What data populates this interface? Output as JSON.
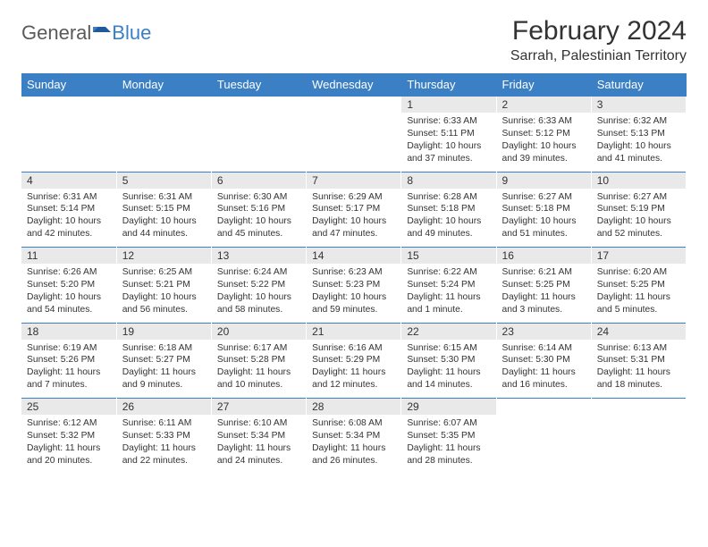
{
  "brand": {
    "general": "General",
    "blue": "Blue"
  },
  "title": "February 2024",
  "location": "Sarrah, Palestinian Territory",
  "header_bg": "#3b7fc4",
  "daynum_bg": "#e9e9e9",
  "text_color": "#333333",
  "days": [
    "Sunday",
    "Monday",
    "Tuesday",
    "Wednesday",
    "Thursday",
    "Friday",
    "Saturday"
  ],
  "weeks": [
    [
      null,
      null,
      null,
      null,
      {
        "n": "1",
        "sr": "Sunrise: 6:33 AM",
        "ss": "Sunset: 5:11 PM",
        "dl1": "Daylight: 10 hours",
        "dl2": "and 37 minutes."
      },
      {
        "n": "2",
        "sr": "Sunrise: 6:33 AM",
        "ss": "Sunset: 5:12 PM",
        "dl1": "Daylight: 10 hours",
        "dl2": "and 39 minutes."
      },
      {
        "n": "3",
        "sr": "Sunrise: 6:32 AM",
        "ss": "Sunset: 5:13 PM",
        "dl1": "Daylight: 10 hours",
        "dl2": "and 41 minutes."
      }
    ],
    [
      {
        "n": "4",
        "sr": "Sunrise: 6:31 AM",
        "ss": "Sunset: 5:14 PM",
        "dl1": "Daylight: 10 hours",
        "dl2": "and 42 minutes."
      },
      {
        "n": "5",
        "sr": "Sunrise: 6:31 AM",
        "ss": "Sunset: 5:15 PM",
        "dl1": "Daylight: 10 hours",
        "dl2": "and 44 minutes."
      },
      {
        "n": "6",
        "sr": "Sunrise: 6:30 AM",
        "ss": "Sunset: 5:16 PM",
        "dl1": "Daylight: 10 hours",
        "dl2": "and 45 minutes."
      },
      {
        "n": "7",
        "sr": "Sunrise: 6:29 AM",
        "ss": "Sunset: 5:17 PM",
        "dl1": "Daylight: 10 hours",
        "dl2": "and 47 minutes."
      },
      {
        "n": "8",
        "sr": "Sunrise: 6:28 AM",
        "ss": "Sunset: 5:18 PM",
        "dl1": "Daylight: 10 hours",
        "dl2": "and 49 minutes."
      },
      {
        "n": "9",
        "sr": "Sunrise: 6:27 AM",
        "ss": "Sunset: 5:18 PM",
        "dl1": "Daylight: 10 hours",
        "dl2": "and 51 minutes."
      },
      {
        "n": "10",
        "sr": "Sunrise: 6:27 AM",
        "ss": "Sunset: 5:19 PM",
        "dl1": "Daylight: 10 hours",
        "dl2": "and 52 minutes."
      }
    ],
    [
      {
        "n": "11",
        "sr": "Sunrise: 6:26 AM",
        "ss": "Sunset: 5:20 PM",
        "dl1": "Daylight: 10 hours",
        "dl2": "and 54 minutes."
      },
      {
        "n": "12",
        "sr": "Sunrise: 6:25 AM",
        "ss": "Sunset: 5:21 PM",
        "dl1": "Daylight: 10 hours",
        "dl2": "and 56 minutes."
      },
      {
        "n": "13",
        "sr": "Sunrise: 6:24 AM",
        "ss": "Sunset: 5:22 PM",
        "dl1": "Daylight: 10 hours",
        "dl2": "and 58 minutes."
      },
      {
        "n": "14",
        "sr": "Sunrise: 6:23 AM",
        "ss": "Sunset: 5:23 PM",
        "dl1": "Daylight: 10 hours",
        "dl2": "and 59 minutes."
      },
      {
        "n": "15",
        "sr": "Sunrise: 6:22 AM",
        "ss": "Sunset: 5:24 PM",
        "dl1": "Daylight: 11 hours",
        "dl2": "and 1 minute."
      },
      {
        "n": "16",
        "sr": "Sunrise: 6:21 AM",
        "ss": "Sunset: 5:25 PM",
        "dl1": "Daylight: 11 hours",
        "dl2": "and 3 minutes."
      },
      {
        "n": "17",
        "sr": "Sunrise: 6:20 AM",
        "ss": "Sunset: 5:25 PM",
        "dl1": "Daylight: 11 hours",
        "dl2": "and 5 minutes."
      }
    ],
    [
      {
        "n": "18",
        "sr": "Sunrise: 6:19 AM",
        "ss": "Sunset: 5:26 PM",
        "dl1": "Daylight: 11 hours",
        "dl2": "and 7 minutes."
      },
      {
        "n": "19",
        "sr": "Sunrise: 6:18 AM",
        "ss": "Sunset: 5:27 PM",
        "dl1": "Daylight: 11 hours",
        "dl2": "and 9 minutes."
      },
      {
        "n": "20",
        "sr": "Sunrise: 6:17 AM",
        "ss": "Sunset: 5:28 PM",
        "dl1": "Daylight: 11 hours",
        "dl2": "and 10 minutes."
      },
      {
        "n": "21",
        "sr": "Sunrise: 6:16 AM",
        "ss": "Sunset: 5:29 PM",
        "dl1": "Daylight: 11 hours",
        "dl2": "and 12 minutes."
      },
      {
        "n": "22",
        "sr": "Sunrise: 6:15 AM",
        "ss": "Sunset: 5:30 PM",
        "dl1": "Daylight: 11 hours",
        "dl2": "and 14 minutes."
      },
      {
        "n": "23",
        "sr": "Sunrise: 6:14 AM",
        "ss": "Sunset: 5:30 PM",
        "dl1": "Daylight: 11 hours",
        "dl2": "and 16 minutes."
      },
      {
        "n": "24",
        "sr": "Sunrise: 6:13 AM",
        "ss": "Sunset: 5:31 PM",
        "dl1": "Daylight: 11 hours",
        "dl2": "and 18 minutes."
      }
    ],
    [
      {
        "n": "25",
        "sr": "Sunrise: 6:12 AM",
        "ss": "Sunset: 5:32 PM",
        "dl1": "Daylight: 11 hours",
        "dl2": "and 20 minutes."
      },
      {
        "n": "26",
        "sr": "Sunrise: 6:11 AM",
        "ss": "Sunset: 5:33 PM",
        "dl1": "Daylight: 11 hours",
        "dl2": "and 22 minutes."
      },
      {
        "n": "27",
        "sr": "Sunrise: 6:10 AM",
        "ss": "Sunset: 5:34 PM",
        "dl1": "Daylight: 11 hours",
        "dl2": "and 24 minutes."
      },
      {
        "n": "28",
        "sr": "Sunrise: 6:08 AM",
        "ss": "Sunset: 5:34 PM",
        "dl1": "Daylight: 11 hours",
        "dl2": "and 26 minutes."
      },
      {
        "n": "29",
        "sr": "Sunrise: 6:07 AM",
        "ss": "Sunset: 5:35 PM",
        "dl1": "Daylight: 11 hours",
        "dl2": "and 28 minutes."
      },
      null,
      null
    ]
  ]
}
